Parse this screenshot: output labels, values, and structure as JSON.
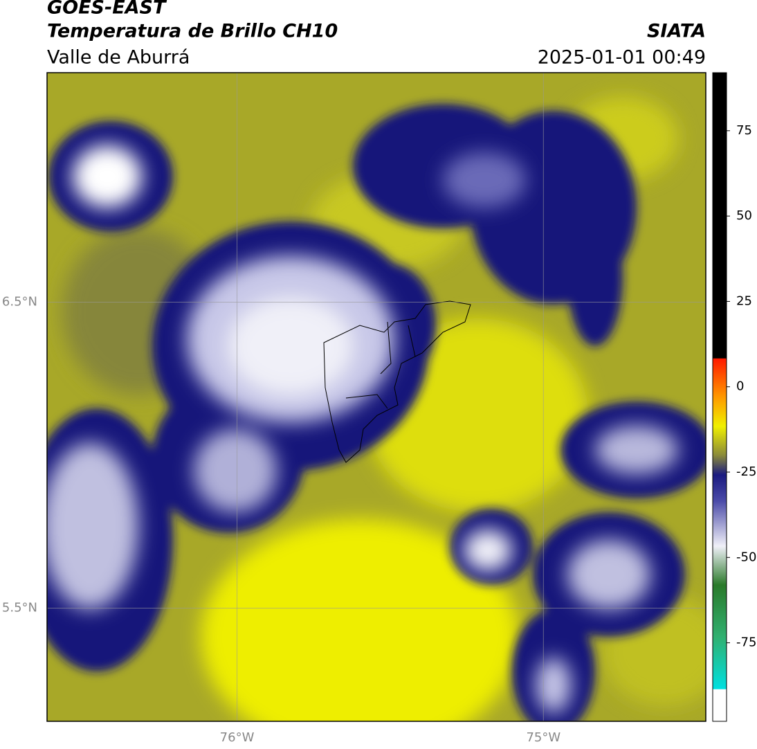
{
  "header": {
    "title": "GOES-EAST",
    "subtitle": "Temperatura de Brillo CH10",
    "region": "Valle de Aburrá",
    "source": "SIATA",
    "datetime": "2025-01-01 00:49"
  },
  "map": {
    "xlim": [
      -76.62,
      -74.47
    ],
    "ylim": [
      5.13,
      7.25
    ],
    "xticks": [
      {
        "value": -76,
        "label": "76°W"
      },
      {
        "value": -75,
        "label": "75°W"
      }
    ],
    "yticks": [
      {
        "value": 6.5,
        "label": "6.5°N"
      },
      {
        "value": 5.5,
        "label": "5.5°N"
      }
    ],
    "grid": true
  },
  "colorbar": {
    "lim": [
      -98,
      92
    ],
    "ticks": [
      -75,
      -50,
      -25,
      0,
      25,
      50,
      75
    ]
  }
}
